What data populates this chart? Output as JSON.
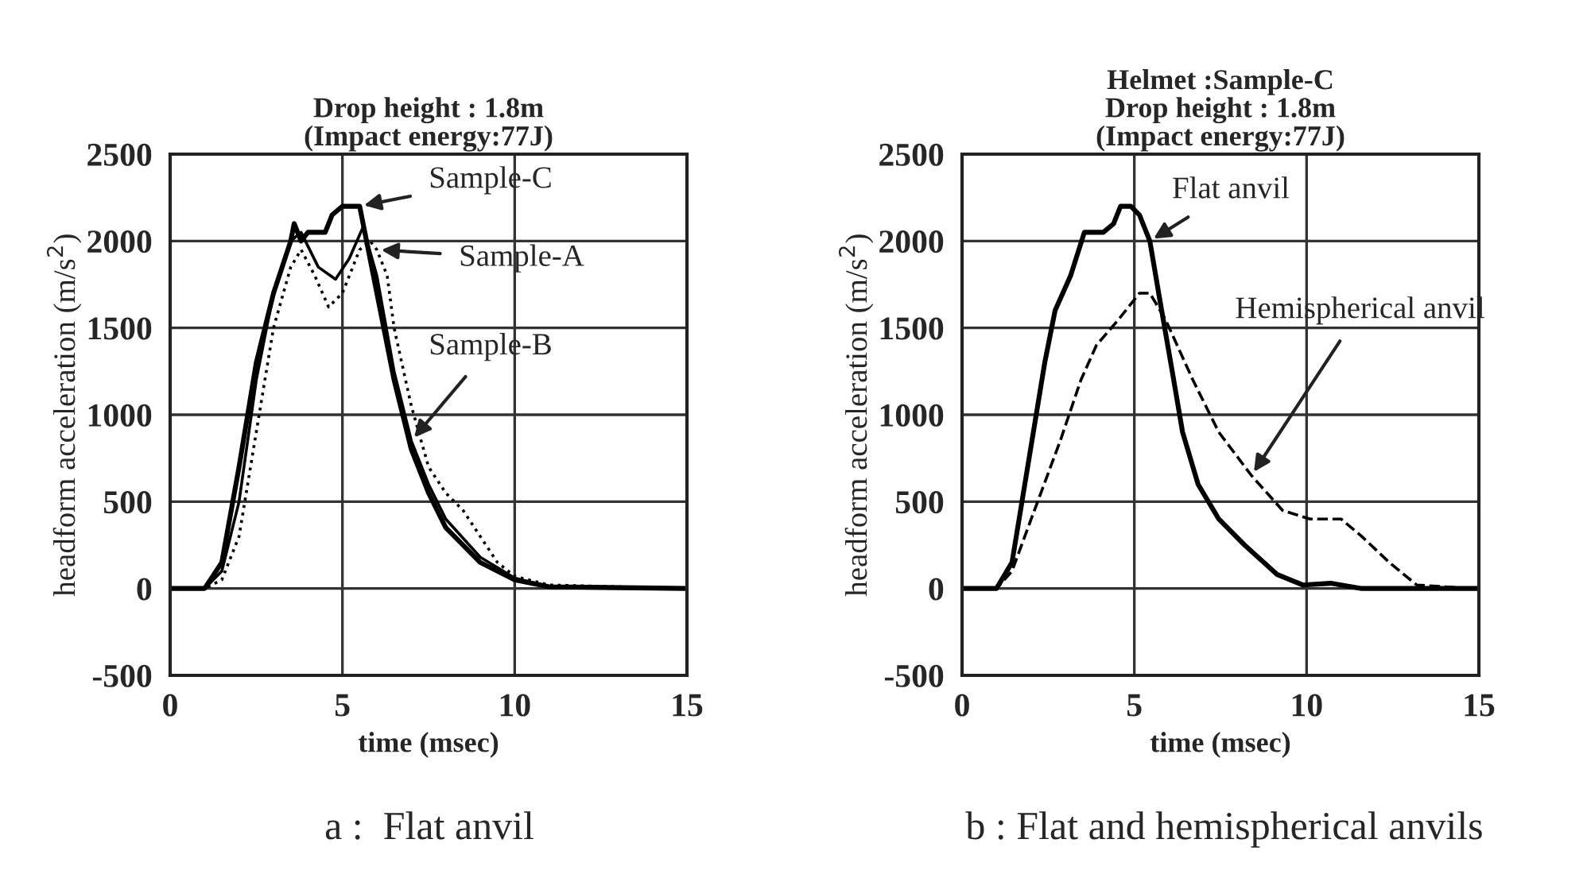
{
  "chart_data": [
    {
      "type": "line",
      "title": "Drop height : 1.8m",
      "subtitle": "(Impact energy:77J)",
      "xlabel": "time (msec)",
      "ylabel": "headform acceleration (m/s$^{2}$)",
      "xlim": [
        0,
        15
      ],
      "xticks": [
        0,
        5,
        10,
        15
      ],
      "ylim": [
        -500,
        2500
      ],
      "yticks": [
        -500,
        0,
        500,
        1000,
        1500,
        2000,
        2500
      ],
      "grid": true,
      "marker": "none",
      "series": [
        {
          "name": "Sample-C",
          "color": "#000000",
          "line_style": "solid",
          "x": [
            0,
            1,
            1.5,
            2,
            2.5,
            3,
            3.5,
            3.6,
            3.8,
            4,
            4.5,
            4.7,
            5,
            5.5,
            5.6,
            6,
            6.5,
            7,
            7.5,
            8,
            9,
            10,
            11,
            15
          ],
          "values": [
            0,
            0,
            150,
            700,
            1300,
            1700,
            2000,
            2100,
            2000,
            2050,
            2050,
            2150,
            2200,
            2200,
            2100,
            1700,
            1200,
            800,
            550,
            350,
            150,
            50,
            10,
            0
          ]
        },
        {
          "name": "Sample-A",
          "color": "#000000",
          "line_style": "dotted",
          "x": [
            0,
            1,
            1.5,
            2,
            2.5,
            3,
            3.5,
            3.8,
            4.2,
            4.6,
            5,
            5.5,
            5.8,
            6,
            6.3,
            6.5,
            7,
            7.5,
            8,
            8.5,
            9,
            9.5,
            10,
            11,
            15
          ],
          "values": [
            0,
            0,
            50,
            300,
            900,
            1500,
            1850,
            1950,
            1800,
            1620,
            1700,
            1950,
            2000,
            1950,
            1800,
            1500,
            1050,
            700,
            550,
            450,
            300,
            150,
            70,
            20,
            0
          ]
        },
        {
          "name": "Sample-B",
          "color": "#000000",
          "line_style": "solid",
          "x": [
            0,
            1,
            1.5,
            2,
            2.5,
            3,
            3.5,
            3.8,
            4.3,
            4.8,
            5.2,
            5.6,
            6,
            6.5,
            7,
            7.5,
            8,
            9,
            10,
            11,
            15
          ],
          "values": [
            0,
            0,
            100,
            500,
            1200,
            1700,
            2000,
            2050,
            1850,
            1780,
            1900,
            2080,
            1800,
            1250,
            850,
            600,
            400,
            180,
            60,
            10,
            0
          ]
        }
      ],
      "annotations": [
        "a :  Flat anvil"
      ]
    },
    {
      "type": "line",
      "title": "Helmet :Sample-C",
      "subtitle": "Drop height : 1.8m\n(Impact energy:77J)",
      "xlabel": "time (msec)",
      "ylabel": "headform acceleration (m/s$^{2}$)",
      "xlim": [
        0,
        15
      ],
      "xticks": [
        0,
        5,
        10,
        15
      ],
      "ylim": [
        -500,
        2500
      ],
      "yticks": [
        -500,
        0,
        500,
        1000,
        1500,
        2000,
        2500
      ],
      "grid": true,
      "marker": "none",
      "series": [
        {
          "name": "Flat anvil",
          "color": "#000000",
          "line_style": "solid",
          "x": [
            0,
            1,
            1.45,
            2.4,
            2.7,
            3.15,
            3.55,
            4.1,
            4.4,
            4.6,
            4.9,
            5.15,
            5.45,
            5.75,
            6.1,
            6.4,
            6.85,
            7.45,
            8.2,
            9.15,
            9.9,
            10.7,
            11.6,
            15
          ],
          "values": [
            0,
            0,
            150,
            1300,
            1600,
            1800,
            2050,
            2050,
            2100,
            2200,
            2200,
            2150,
            2000,
            1650,
            1250,
            900,
            600,
            400,
            250,
            80,
            20,
            30,
            0,
            0
          ]
        },
        {
          "name": "Hemispherical anvil",
          "color": "#000000",
          "line_style": "dashed",
          "x": [
            0,
            1,
            1.45,
            2.1,
            2.85,
            3.45,
            3.9,
            4.55,
            5.15,
            5.45,
            5.9,
            6.7,
            7.45,
            8.4,
            9.3,
            10.1,
            11,
            11.6,
            12.4,
            13.2,
            14.8,
            15
          ],
          "values": [
            0,
            0,
            100,
            450,
            850,
            1200,
            1400,
            1550,
            1700,
            1700,
            1550,
            1200,
            900,
            650,
            450,
            400,
            400,
            300,
            150,
            20,
            0,
            0
          ]
        }
      ],
      "annotations": [
        "b : Flat and hemispherical anvils"
      ]
    }
  ]
}
